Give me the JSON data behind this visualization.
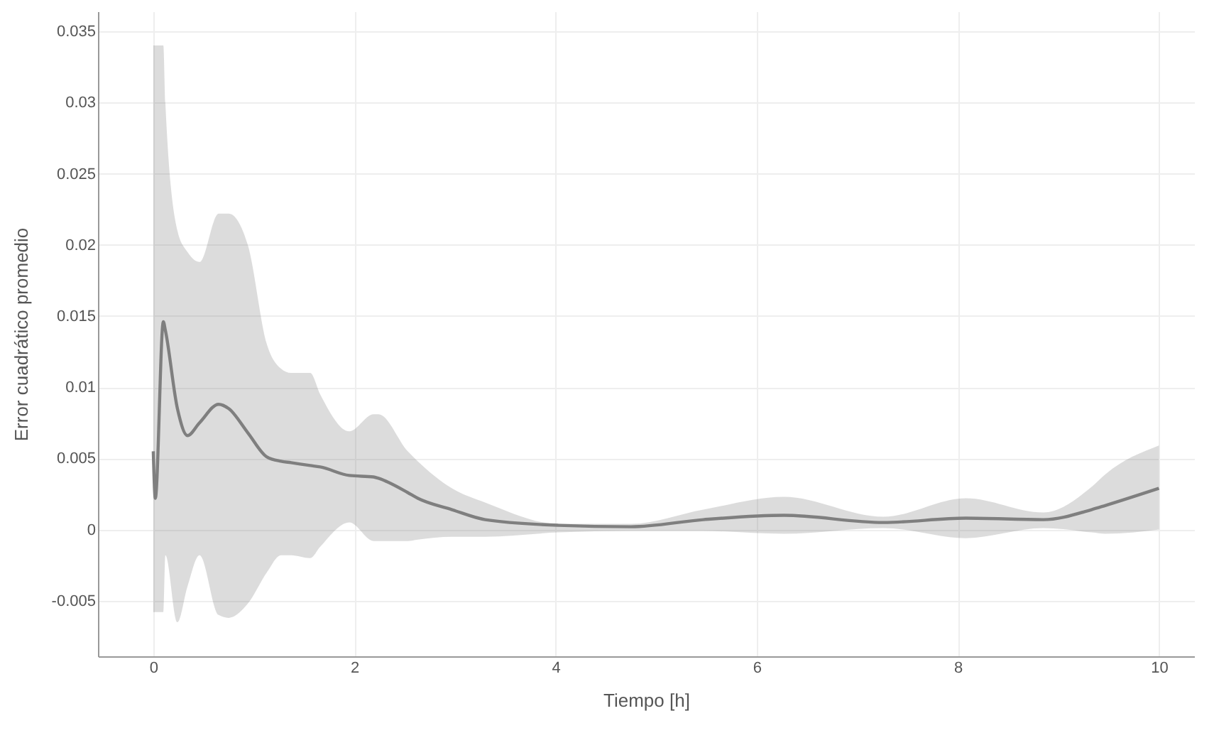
{
  "chart_data": {
    "type": "line",
    "xlabel": "Tiempo [h]",
    "ylabel": "Error cuadrático promedio",
    "x": [
      0,
      0.02,
      0.1,
      0.12,
      0.24,
      0.34,
      0.46,
      0.65,
      0.75,
      0.94,
      1.13,
      1.27,
      1.37,
      1.56,
      1.66,
      1.95,
      2.19,
      2.24,
      2.53,
      2.63,
      2.97,
      3.3,
      4.03,
      4.75,
      5.47,
      6.27,
      7.26,
      8.08,
      8.85,
      9.33,
      9.47,
      10
    ],
    "series": [
      {
        "color": "#7f7f7f",
        "values": [
          0.0055,
          0.0022,
          0.0146,
          0.014,
          0.0085,
          0.0066,
          0.0075,
          0.0088,
          0.0085,
          0.0068,
          0.0051,
          0.0048,
          0.0047,
          0.0045,
          0.0044,
          0.0038,
          0.0037,
          0.0036,
          0.0026,
          0.0022,
          0.0014,
          0.0007,
          0.0003,
          0.0002,
          0.0007,
          0.001,
          0.0005,
          0.0008,
          0.0007,
          0.0014,
          0.0017,
          0.0029
        ],
        "upper": [
          0.034,
          0.034,
          0.034,
          0.03,
          0.021,
          0.0195,
          0.0188,
          0.0222,
          0.0222,
          0.02,
          0.013,
          0.0113,
          0.011,
          0.011,
          0.0095,
          0.0069,
          0.0081,
          0.0081,
          0.0055,
          0.0048,
          0.0029,
          0.0019,
          0.0004,
          0.0004,
          0.0014,
          0.0023,
          0.0009,
          0.0022,
          0.0012,
          0.003,
          0.0039,
          0.0059
        ],
        "lower": [
          -0.0058,
          -0.0058,
          -0.0058,
          -0.0018,
          -0.0065,
          -0.004,
          -0.0018,
          -0.006,
          -0.0062,
          -0.0052,
          -0.003,
          -0.0018,
          -0.0018,
          -0.002,
          -0.0012,
          0.0005,
          -0.0008,
          -0.0008,
          -0.0008,
          -0.0007,
          -0.0005,
          -0.0005,
          -0.0002,
          -0.0001,
          -0.0001,
          -0.0003,
          0.0001,
          -0.0006,
          0.0001,
          -0.0002,
          -0.0003,
          0
        ]
      }
    ],
    "xlim": [
      -0.55,
      10.35
    ],
    "xticks": [
      0,
      2,
      4,
      6,
      8,
      10
    ],
    "ylim": [
      -0.0089,
      0.0364
    ],
    "yticks": [
      -0.005,
      0,
      0.005,
      0.01,
      0.015,
      0.02,
      0.025,
      0.03,
      0.035
    ],
    "grid": true,
    "marker": "none",
    "line_style": "solid"
  }
}
